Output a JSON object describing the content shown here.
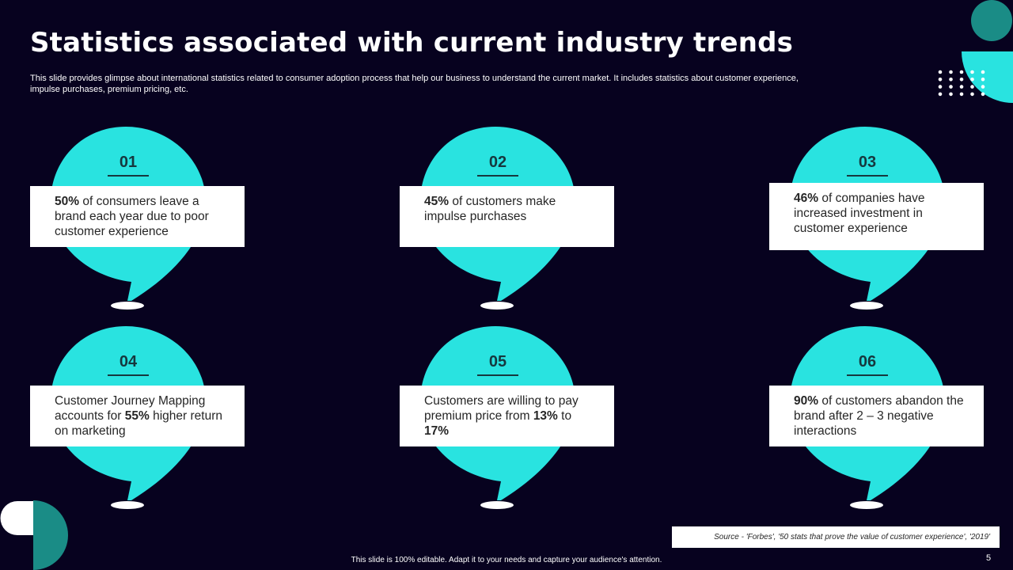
{
  "slide": {
    "title": "Statistics associated with current industry trends",
    "subtitle": "This slide provides glimpse about international statistics related to consumer adoption process that help our business to understand the current market. It includes statistics about customer experience, impulse purchases, premium pricing, etc.",
    "source": "Source - 'Forbes', '50 stats that prove the value of customer experience', '2019'",
    "footer": "This slide is 100% editable.  Adapt it to your needs and capture your audience's attention.",
    "page_number": "5"
  },
  "colors": {
    "background": "#07021f",
    "accent": "#29e3e0",
    "teal_dark": "#1a8c86",
    "number_text": "#16383e"
  },
  "cards": [
    {
      "number": "01",
      "parts": [
        {
          "b": "50%"
        },
        {
          "t": " of consumers leave a brand each year due to poor customer experience"
        }
      ]
    },
    {
      "number": "02",
      "parts": [
        {
          "b": "45%"
        },
        {
          "t": " of customers make impulse purchases"
        }
      ]
    },
    {
      "number": "03",
      "parts": [
        {
          "b": "46%"
        },
        {
          "t": " of companies have increased investment  in customer experience"
        }
      ]
    },
    {
      "number": "04",
      "parts": [
        {
          "t": "Customer Journey Mapping accounts for "
        },
        {
          "b": "55%"
        },
        {
          "t": " higher return on marketing"
        }
      ]
    },
    {
      "number": "05",
      "parts": [
        {
          "t": "Customers are willing to pay premium price from "
        },
        {
          "b": "13%"
        },
        {
          "t": " to "
        },
        {
          "b": "17%"
        }
      ]
    },
    {
      "number": "06",
      "parts": [
        {
          "b": "90%"
        },
        {
          "t": " of customers abandon the brand after 2 – 3 negative interactions"
        }
      ]
    }
  ]
}
